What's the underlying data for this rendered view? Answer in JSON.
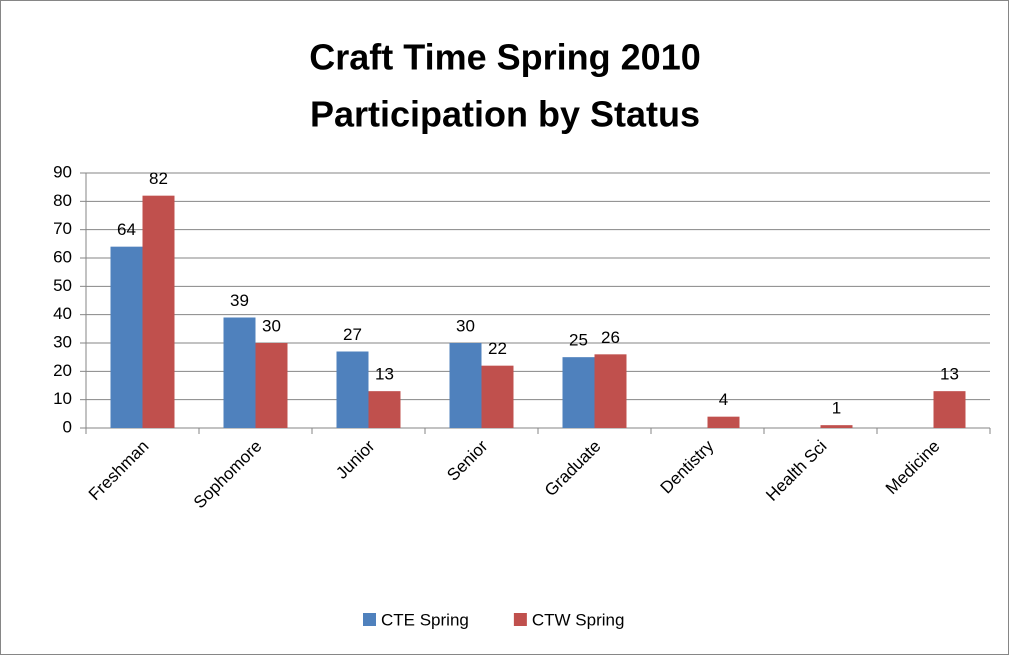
{
  "chart_data": {
    "type": "bar",
    "title": [
      "Craft Time Spring 2010",
      "Participation by Status"
    ],
    "categories": [
      "Freshman",
      "Sophomore",
      "Junior",
      "Senior",
      "Graduate",
      "Dentistry",
      "Health Sci",
      "Medicine"
    ],
    "series": [
      {
        "name": "CTE Spring",
        "color": "#4f81bd",
        "values": [
          64,
          39,
          27,
          30,
          25,
          null,
          null,
          null
        ]
      },
      {
        "name": "CTW Spring",
        "color": "#c0504d",
        "values": [
          82,
          30,
          13,
          22,
          26,
          4,
          1,
          13
        ]
      }
    ],
    "ylim": [
      0,
      90
    ],
    "yticks": [
      0,
      10,
      20,
      30,
      40,
      50,
      60,
      70,
      80,
      90
    ],
    "grid": true,
    "legend": "bottom"
  }
}
